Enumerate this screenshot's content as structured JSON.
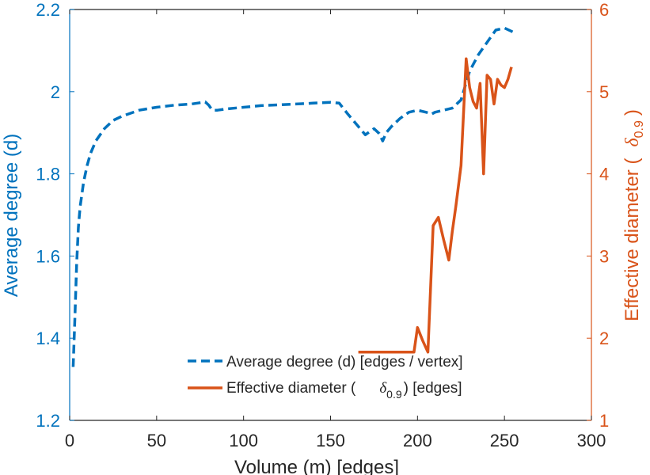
{
  "chart_data": {
    "type": "line",
    "xlabel": "Volume (m) [edges]",
    "ylabel_left": "Average degree (d)",
    "ylabel_right_prefix": "Effective diameter (",
    "ylabel_right_symbol": "δ",
    "ylabel_right_subscript": "0.9",
    "ylabel_right_suffix": ")",
    "xlim": [
      0,
      300
    ],
    "ylim_left": [
      1.2,
      2.2
    ],
    "ylim_right": [
      1,
      6
    ],
    "x_ticks": [
      0,
      50,
      100,
      150,
      200,
      250,
      300
    ],
    "y_left_ticks": [
      1.2,
      1.4,
      1.6,
      1.8,
      2,
      2.2
    ],
    "y_right_ticks": [
      1,
      2,
      3,
      4,
      5,
      6
    ],
    "x_tick_labels": [
      "0",
      "50",
      "100",
      "150",
      "200",
      "250",
      "300"
    ],
    "y_left_tick_labels": [
      "1.2",
      "1.4",
      "1.6",
      "1.8",
      "2",
      "2.2"
    ],
    "y_right_tick_labels": [
      "1",
      "2",
      "3",
      "4",
      "5",
      "6"
    ],
    "grid": false,
    "legend_position": "bottom-center",
    "colors": {
      "left": "#0072BD",
      "right": "#D95319",
      "axes": "#262626"
    },
    "series": [
      {
        "name": "Average degree (d) [edges / vertex]",
        "axis": "left",
        "style": "dashed",
        "x": [
          2,
          3,
          4,
          5,
          6,
          8,
          10,
          12,
          15,
          20,
          25,
          30,
          40,
          50,
          60,
          70,
          78,
          80,
          82,
          85,
          90,
          100,
          110,
          120,
          130,
          140,
          150,
          155,
          160,
          165,
          170,
          175,
          178,
          180,
          182,
          185,
          190,
          195,
          200,
          205,
          208,
          210,
          215,
          220,
          225,
          230,
          235,
          240,
          245,
          250,
          255
        ],
        "y": [
          1.33,
          1.45,
          1.58,
          1.67,
          1.72,
          1.78,
          1.82,
          1.85,
          1.88,
          1.91,
          1.93,
          1.94,
          1.955,
          1.962,
          1.967,
          1.97,
          1.975,
          1.967,
          1.955,
          1.955,
          1.958,
          1.962,
          1.966,
          1.968,
          1.97,
          1.972,
          1.974,
          1.972,
          1.945,
          1.92,
          1.895,
          1.91,
          1.898,
          1.88,
          1.9,
          1.915,
          1.935,
          1.95,
          1.955,
          1.95,
          1.945,
          1.95,
          1.955,
          1.96,
          1.98,
          2.05,
          2.09,
          2.12,
          2.15,
          2.155,
          2.145
        ]
      },
      {
        "name": "Effective diameter (δ0.9) [edges]",
        "legend_prefix": "Effective diameter (",
        "legend_symbol": "δ",
        "legend_subscript": "0.9",
        "legend_suffix": ") [edges]",
        "axis": "right",
        "style": "solid",
        "x": [
          166,
          170,
          180,
          190,
          198,
          200,
          203,
          206,
          209,
          212,
          215,
          218,
          220,
          222,
          225,
          228,
          230,
          232,
          234,
          236,
          238,
          240,
          242,
          244,
          246,
          248,
          250,
          252,
          254
        ],
        "y": [
          1.83,
          1.83,
          1.83,
          1.83,
          1.83,
          2.13,
          1.97,
          1.83,
          3.37,
          3.47,
          3.2,
          2.95,
          3.3,
          3.6,
          4.1,
          5.4,
          5.05,
          4.88,
          4.8,
          5.1,
          4.0,
          5.2,
          5.15,
          4.85,
          5.15,
          5.08,
          5.05,
          5.15,
          5.3
        ]
      }
    ]
  }
}
